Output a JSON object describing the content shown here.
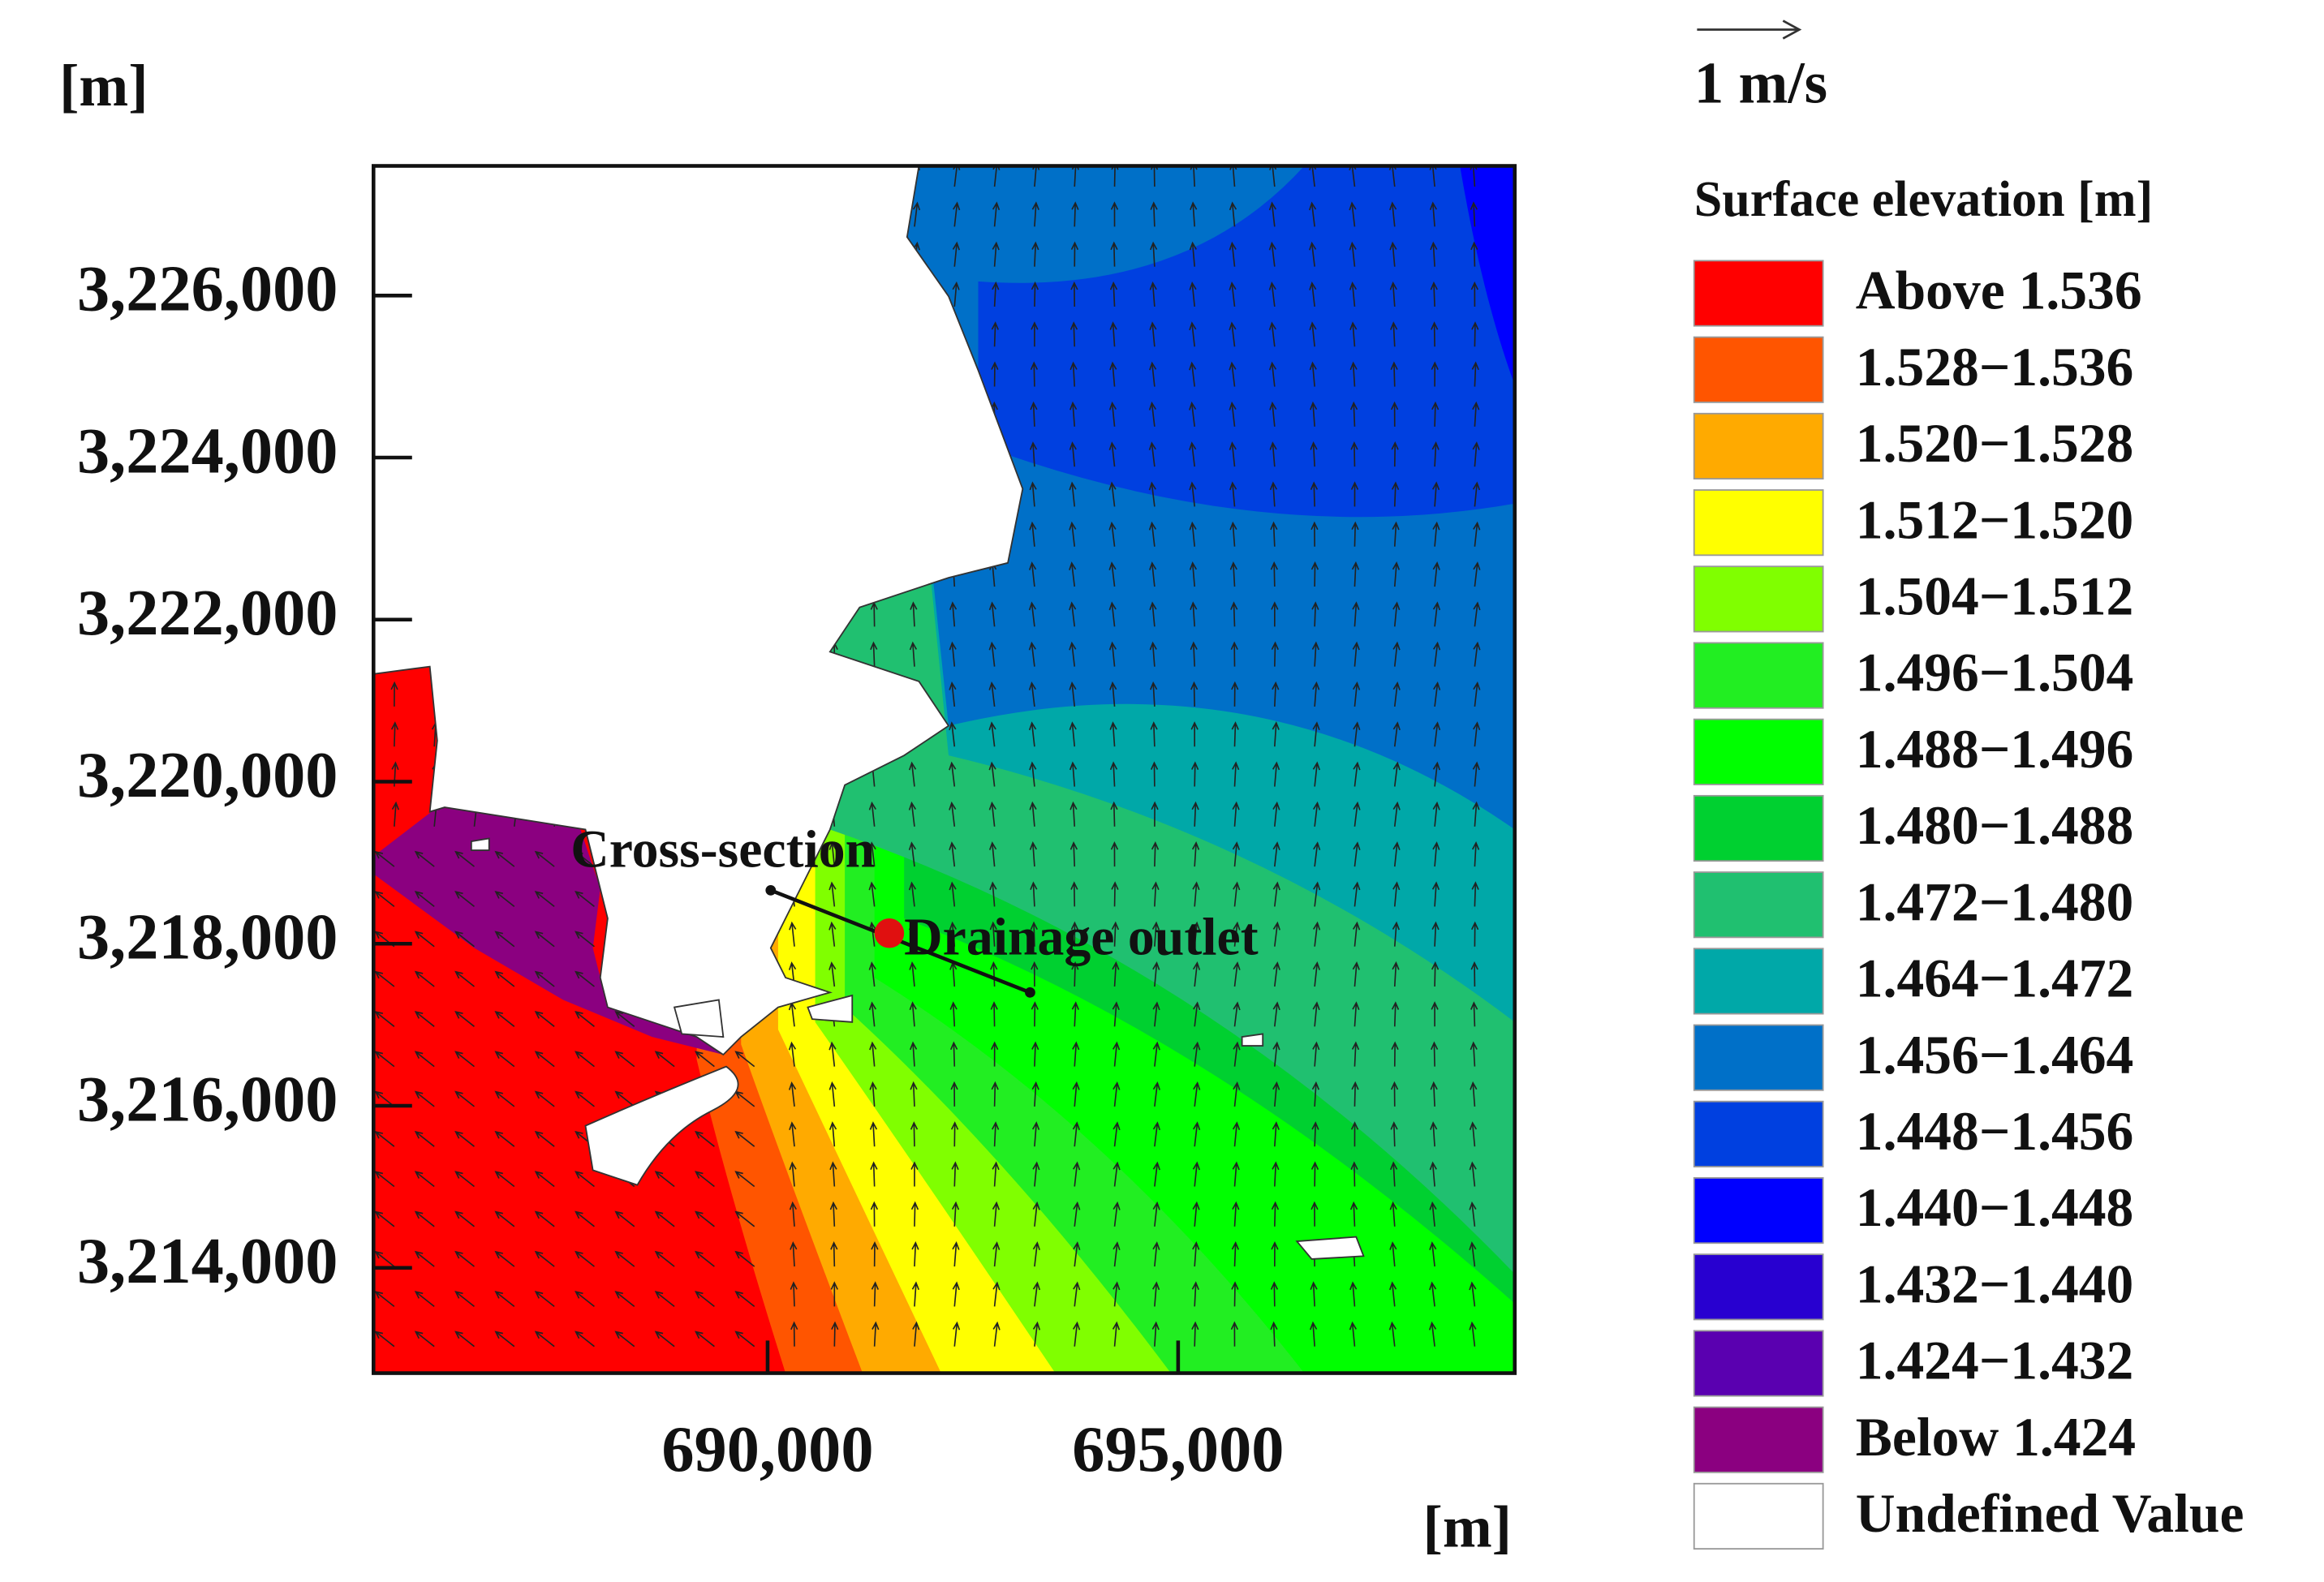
{
  "chart_data": {
    "type": "contour",
    "x_label": "[m]",
    "y_label": "[m]",
    "xlim": [
      685200,
      699100
    ],
    "ylim": [
      3212700,
      3227600
    ],
    "xticks": [
      {
        "value": 690000,
        "label": "690,000"
      },
      {
        "value": 695000,
        "label": "695,000"
      }
    ],
    "yticks": [
      {
        "value": 3214000,
        "label": "3,214,000"
      },
      {
        "value": 3216000,
        "label": "3,216,000"
      },
      {
        "value": 3218000,
        "label": "3,218,000"
      },
      {
        "value": 3220000,
        "label": "3,220,000"
      },
      {
        "value": 3222000,
        "label": "3,222,000"
      },
      {
        "value": 3224000,
        "label": "3,224,000"
      },
      {
        "value": 3226000,
        "label": "3,226,000"
      }
    ],
    "vector_scale": "1 m/s",
    "annotations": [
      "Cross-section",
      "Drainage outlet"
    ],
    "legend": {
      "title": "Surface elevation [m]",
      "items": [
        {
          "label": "Above 1.536",
          "color": "#ff0000"
        },
        {
          "label": "1.528−1.536",
          "color": "#ff5500"
        },
        {
          "label": "1.520−1.528",
          "color": "#ffaa00"
        },
        {
          "label": "1.512−1.520",
          "color": "#ffff00"
        },
        {
          "label": "1.504−1.512",
          "color": "#80ff00"
        },
        {
          "label": "1.496−1.504",
          "color": "#22ee22"
        },
        {
          "label": "1.488−1.496",
          "color": "#00ff00"
        },
        {
          "label": "1.480−1.488",
          "color": "#00d030"
        },
        {
          "label": "1.472−1.480",
          "color": "#20c070"
        },
        {
          "label": "1.464−1.472",
          "color": "#00a8a8"
        },
        {
          "label": "1.456−1.464",
          "color": "#0070c8"
        },
        {
          "label": "1.448−1.456",
          "color": "#0040e0"
        },
        {
          "label": "1.440−1.448",
          "color": "#0000ff"
        },
        {
          "label": "1.432−1.440",
          "color": "#2800d0"
        },
        {
          "label": "1.424−1.432",
          "color": "#5a00b0"
        },
        {
          "label": "Below 1.424",
          "color": "#8b0080"
        },
        {
          "label": "Undefined Value",
          "color": "#ffffff"
        }
      ]
    }
  }
}
